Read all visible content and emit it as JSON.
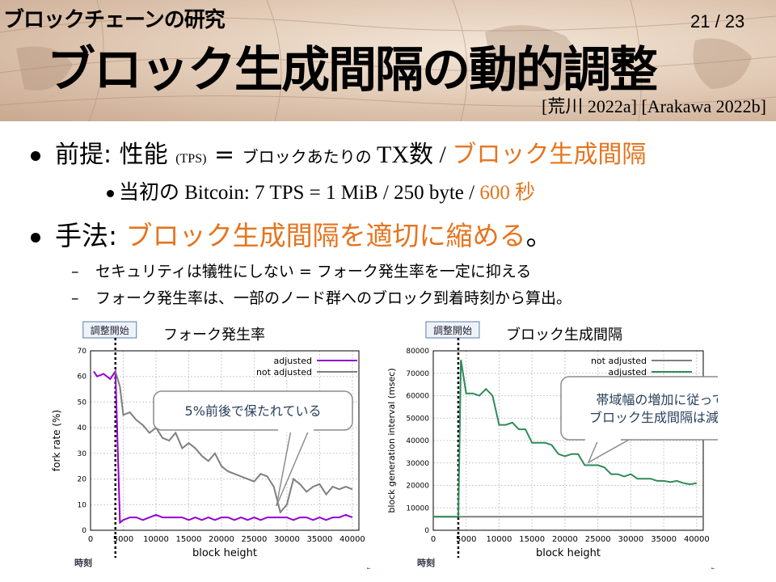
{
  "header": {
    "subtitle": "ブロックチェーンの研究",
    "page_number": "21 / 23",
    "title": "ブロック生成間隔の動的調整",
    "references": "[荒川 2022a] [Arakawa 2022b]"
  },
  "bullets": [
    {
      "prefix": "前提: 性能 ",
      "tps": "(TPS)",
      "mid": " = ",
      "small_text": "ブロックあたりの ",
      "tx": "TX数 / ",
      "highlight": "ブロック生成間隔"
    },
    {
      "text": "当初の Bitcoin: 7 TPS = 1 MiB / 250 byte / ",
      "highlight": "600 秒"
    },
    {
      "prefix": "手法: ",
      "highlight": "ブロック生成間隔を適切に縮める",
      "suffix": "。"
    }
  ],
  "sub_items": [
    {
      "dash": "–",
      "text": "セキュリティは犠牲にしない = フォーク発生率を一定に抑える"
    },
    {
      "dash": "–",
      "text": "フォーク発生率は、一部のノード群へのブロック到着時刻から算出。"
    }
  ],
  "colors": {
    "orange": "#e5741e",
    "purple": "#9400d3",
    "gray": "#7f7f7f",
    "green": "#2e8b57",
    "axis_arrow": "#5b7ea8"
  },
  "chart_data": [
    {
      "type": "line",
      "title": "フォーク発生率",
      "start_label": "調整開始",
      "time_label": "時刻",
      "xlabel": "block height",
      "ylabel": "fork rate (%)",
      "xlim": [
        0,
        41000
      ],
      "ylim": [
        0,
        70
      ],
      "xticks": [
        0,
        5000,
        10000,
        15000,
        20000,
        25000,
        30000,
        35000,
        40000
      ],
      "yticks": [
        0,
        10,
        20,
        30,
        40,
        50,
        60,
        70
      ],
      "start_x": 3800,
      "legend_position": "top-right",
      "annotation": "5%前後で保たれている",
      "series": [
        {
          "name": "adjusted",
          "color": "#9400d3",
          "x": [
            500,
            1000,
            2000,
            3000,
            3800,
            4500,
            5000,
            6000,
            7000,
            8000,
            9000,
            10000,
            11000,
            12000,
            13000,
            14000,
            15000,
            16000,
            17000,
            18000,
            19000,
            20000,
            21000,
            22000,
            23000,
            24000,
            25000,
            26000,
            27000,
            28000,
            29000,
            30000,
            31000,
            32000,
            33000,
            34000,
            35000,
            36000,
            37000,
            38000,
            39000,
            40000
          ],
          "y": [
            62,
            60,
            61,
            59,
            62,
            3,
            4,
            5,
            5,
            4,
            5,
            6,
            5,
            5,
            5,
            5,
            4,
            5,
            4,
            5,
            4,
            5,
            5,
            4,
            5,
            4,
            5,
            4,
            5,
            5,
            5,
            5,
            4,
            5,
            5,
            4,
            5,
            4,
            5,
            5,
            6,
            5
          ]
        },
        {
          "name": "not adjusted",
          "color": "#7f7f7f",
          "x": [
            3800,
            4500,
            5000,
            6000,
            7000,
            8000,
            9000,
            10000,
            11000,
            12000,
            13000,
            14000,
            15000,
            16000,
            17000,
            18000,
            19000,
            20000,
            21000,
            22000,
            23000,
            24000,
            25000,
            26000,
            27000,
            28000,
            29000,
            30000,
            31000,
            32000,
            33000,
            34000,
            35000,
            36000,
            37000,
            38000,
            39000,
            40000
          ],
          "y": [
            62,
            56,
            45,
            46,
            43,
            41,
            38,
            40,
            36,
            35,
            38,
            32,
            34,
            32,
            29,
            27,
            30,
            25,
            23,
            22,
            21,
            20,
            19,
            22,
            21,
            17,
            7,
            10,
            20,
            18,
            15,
            17,
            18,
            14,
            17,
            16,
            17,
            16
          ]
        }
      ]
    },
    {
      "type": "line",
      "title": "ブロック生成間隔",
      "start_label": "調整開始",
      "time_label": "時刻",
      "xlabel": "block height",
      "ylabel": "block generation interval (msec)",
      "xlim": [
        0,
        41000
      ],
      "ylim": [
        0,
        80000
      ],
      "xticks": [
        0,
        5000,
        10000,
        15000,
        20000,
        25000,
        30000,
        35000,
        40000
      ],
      "yticks": [
        0,
        10000,
        20000,
        30000,
        40000,
        50000,
        60000,
        70000,
        80000
      ],
      "start_x": 3800,
      "legend_position": "top-right",
      "annotation": "帯域幅の増加に従って ブロック生成間隔は減少",
      "series": [
        {
          "name": "not adjusted",
          "color": "#7f7f7f",
          "x": [
            0,
            41000
          ],
          "y": [
            6000,
            6000
          ]
        },
        {
          "name": "adjusted",
          "color": "#2e8b57",
          "x": [
            0,
            3800,
            4200,
            5000,
            6000,
            7000,
            8000,
            9000,
            10000,
            11000,
            12000,
            13000,
            14000,
            15000,
            16000,
            17000,
            18000,
            19000,
            20000,
            21000,
            22000,
            23000,
            24000,
            25000,
            26000,
            27000,
            28000,
            29000,
            30000,
            31000,
            32000,
            33000,
            34000,
            35000,
            36000,
            37000,
            38000,
            39000,
            40000
          ],
          "y": [
            6000,
            6000,
            76000,
            61000,
            61000,
            60000,
            63000,
            60000,
            47000,
            47000,
            48000,
            45000,
            45000,
            39000,
            39000,
            39000,
            38000,
            34000,
            33000,
            34000,
            34000,
            29000,
            29000,
            29000,
            28000,
            25000,
            25000,
            24000,
            25000,
            23000,
            23000,
            23000,
            22000,
            22000,
            21500,
            22000,
            21000,
            20500,
            21000
          ]
        }
      ]
    }
  ]
}
